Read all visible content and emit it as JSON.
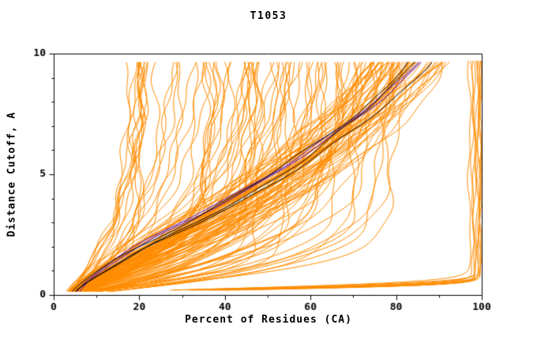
{
  "chart_data": {
    "type": "line",
    "title": "T1053",
    "xlabel": "Percent of Residues (CA)",
    "ylabel": "Distance Cutoff, A",
    "xlim": [
      0,
      100
    ],
    "ylim": [
      0,
      10
    ],
    "xticks": [
      0,
      20,
      40,
      60,
      80,
      100
    ],
    "yticks": [
      0,
      5,
      10
    ],
    "x_minor_step": 10,
    "y_minor_step": 1,
    "grid": "off",
    "legend": "none",
    "background": "#ffffff",
    "axis_color": "#000000",
    "colors": {
      "ensemble": "#ff8c00",
      "consensus_primary": "#000000",
      "consensus_secondary": "#4400bb"
    },
    "description": "Cumulative distance-cutoff curves (GDT-style): percent of CA residues under each distance cutoff for an ensemble of model predictions (orange), with consensus/reference curves in black and blue-violet.",
    "seed": 42,
    "families": [
      {
        "name": "ensemble-poor",
        "color": "#ff8c00",
        "count": 85,
        "x0": [
          2.5,
          6.0
        ],
        "xmax": [
          16,
          82
        ],
        "tau": [
          0.7,
          4.5
        ],
        "shape": [
          0.85,
          1.4
        ],
        "d_start": 0.15,
        "d_end": 9.7,
        "step": 0.1,
        "wiggle": 1.3
      },
      {
        "name": "ensemble-bundle",
        "color": "#ff8c00",
        "count": 55,
        "x0": [
          3.0,
          5.5
        ],
        "xmax": [
          74,
          93
        ],
        "tau": [
          4.5,
          9.0
        ],
        "shape": [
          1.0,
          1.4
        ],
        "d_start": 0.15,
        "d_end": 9.7,
        "step": 0.1,
        "wiggle": 1.5
      },
      {
        "name": "ensemble-top",
        "color": "#ff8c00",
        "count": 10,
        "x0": [
          4.0,
          8.0
        ],
        "xmax": [
          97,
          100
        ],
        "tau": [
          0.28,
          0.42
        ],
        "shape": [
          1.8,
          2.2
        ],
        "d_start": 0.2,
        "d_end": 9.7,
        "step": 0.05,
        "wiggle": 0.5
      },
      {
        "name": "consensus-blue",
        "color": "#4400bb",
        "count": 2,
        "x0": [
          4.5,
          6.0
        ],
        "xmax": [
          85.5,
          87.5
        ],
        "tau": [
          6.6,
          7.2
        ],
        "shape": [
          1.4,
          1.55
        ],
        "d_start": 0.15,
        "d_end": 9.7,
        "step": 0.1,
        "wiggle": 0.8
      },
      {
        "name": "consensus-black",
        "color": "#000000",
        "count": 3,
        "x0": [
          3.5,
          4.5
        ],
        "xmax": [
          83,
          90
        ],
        "tau": [
          6.4,
          7.4
        ],
        "shape": [
          1.25,
          1.4
        ],
        "d_start": 0.15,
        "d_end": 9.7,
        "step": 0.1,
        "wiggle": 0.9
      }
    ]
  }
}
